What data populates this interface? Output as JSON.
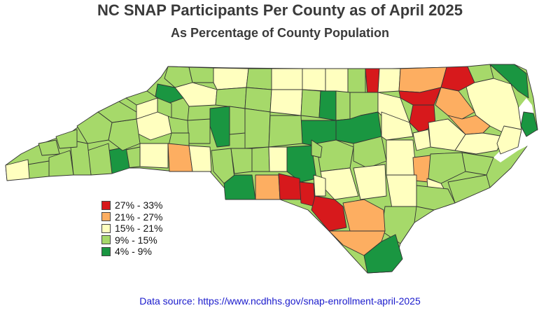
{
  "title": "NC SNAP Participants Per County as of April 2025",
  "subtitle": "As Percentage of County Population",
  "legend": [
    {
      "label": "27% - 33%",
      "color": "#d7191c"
    },
    {
      "label": "21% - 27%",
      "color": "#fdae61"
    },
    {
      "label": "15% - 21%",
      "color": "#ffffbf"
    },
    {
      "label": "9% - 15%",
      "color": "#a6d96a"
    },
    {
      "label": "4% - 9%",
      "color": "#1a9641"
    }
  ],
  "source": {
    "prefix": "Data source: ",
    "url": "https://www.ncdhhs.gov/snap-enrollment-april-2025"
  }
}
